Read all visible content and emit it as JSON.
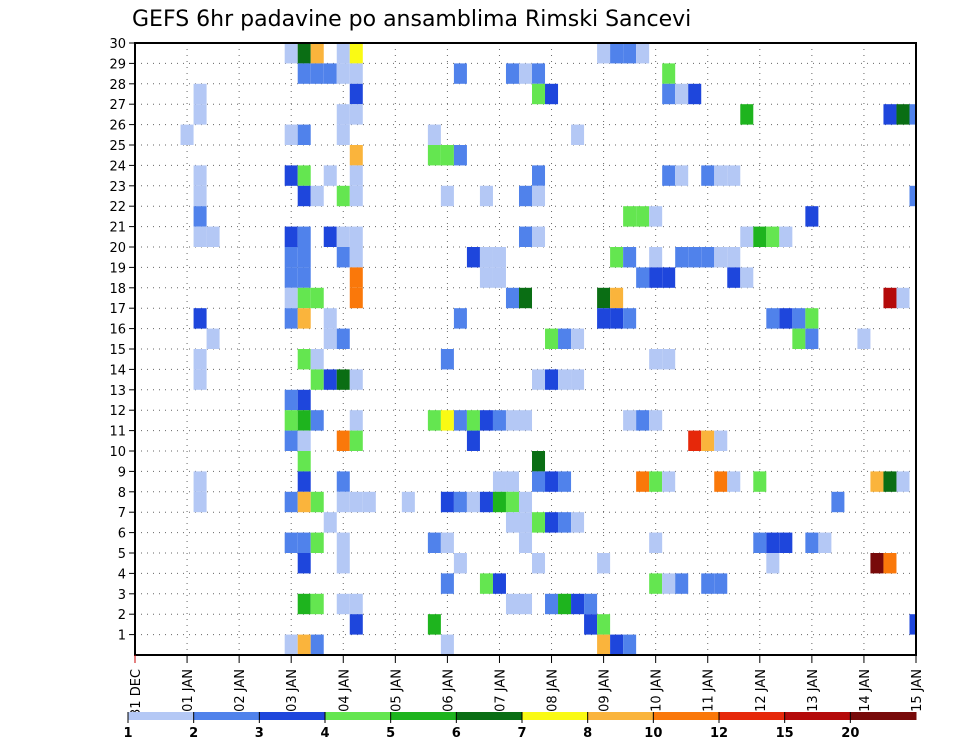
{
  "chart_data": {
    "type": "heatmap",
    "title": "GEFS 6hr padavine po ansamblima Rimski Sancevi",
    "xlabel": "",
    "ylabel": "",
    "x_tick_labels": [
      "31 DEC",
      "01 JAN",
      "02 JAN",
      "03 JAN",
      "04 JAN",
      "05 JAN",
      "06 JAN",
      "07 JAN",
      "08 JAN",
      "09 JAN",
      "10 JAN",
      "11 JAN",
      "12 JAN",
      "13 JAN",
      "14 JAN",
      "15 JAN"
    ],
    "y_tick_labels": [
      "1",
      "2",
      "3",
      "4",
      "5",
      "6",
      "7",
      "8",
      "9",
      "10",
      "11",
      "12",
      "13",
      "14",
      "15",
      "16",
      "17",
      "18",
      "19",
      "20",
      "21",
      "22",
      "23",
      "24",
      "25",
      "26",
      "27",
      "28",
      "29",
      "30"
    ],
    "x_unit": "6-hour steps from 31 DEC 00Z",
    "xlim": [
      0,
      60
    ],
    "ylim": [
      0,
      30
    ],
    "grid": "dotted",
    "colorbar": {
      "position": "bottom",
      "labels": [
        "1",
        "2",
        "3",
        "4",
        "5",
        "6",
        "7",
        "8",
        "10",
        "12",
        "15",
        "20"
      ],
      "colors": [
        "#b4c8f5",
        "#5082eb",
        "#1e46dc",
        "#64e650",
        "#1eb41e",
        "#0a6e14",
        "#fafa14",
        "#fab43c",
        "#fa780a",
        "#e6280a",
        "#b40a0a",
        "#780a0a"
      ]
    },
    "cells": [
      [
        30,
        12,
        0
      ],
      [
        30,
        13,
        5
      ],
      [
        30,
        14,
        7
      ],
      [
        30,
        16,
        0
      ],
      [
        30,
        17,
        6
      ],
      [
        30,
        36,
        0
      ],
      [
        30,
        37,
        1
      ],
      [
        30,
        38,
        1
      ],
      [
        30,
        39,
        0
      ],
      [
        29,
        13,
        1
      ],
      [
        29,
        14,
        1
      ],
      [
        29,
        15,
        1
      ],
      [
        29,
        16,
        0
      ],
      [
        29,
        17,
        0
      ],
      [
        29,
        25,
        1
      ],
      [
        29,
        29,
        1
      ],
      [
        29,
        30,
        0
      ],
      [
        29,
        31,
        1
      ],
      [
        29,
        41,
        3
      ],
      [
        28,
        5,
        0
      ],
      [
        28,
        17,
        2
      ],
      [
        28,
        31,
        3
      ],
      [
        28,
        32,
        2
      ],
      [
        28,
        41,
        1
      ],
      [
        28,
        42,
        0
      ],
      [
        28,
        43,
        2
      ],
      [
        27,
        5,
        0
      ],
      [
        27,
        16,
        0
      ],
      [
        27,
        17,
        0
      ],
      [
        27,
        47,
        4
      ],
      [
        27,
        58,
        2
      ],
      [
        27,
        59,
        5
      ],
      [
        27,
        60,
        1
      ],
      [
        26,
        4,
        0
      ],
      [
        26,
        12,
        0
      ],
      [
        26,
        13,
        1
      ],
      [
        26,
        16,
        0
      ],
      [
        26,
        23,
        0
      ],
      [
        26,
        34,
        0
      ],
      [
        25,
        17,
        7
      ],
      [
        25,
        23,
        3
      ],
      [
        25,
        24,
        3
      ],
      [
        25,
        25,
        1
      ],
      [
        24,
        5,
        0
      ],
      [
        24,
        12,
        2
      ],
      [
        24,
        13,
        3
      ],
      [
        24,
        15,
        0
      ],
      [
        24,
        17,
        0
      ],
      [
        24,
        31,
        1
      ],
      [
        24,
        41,
        1
      ],
      [
        24,
        42,
        0
      ],
      [
        24,
        44,
        1
      ],
      [
        24,
        45,
        0
      ],
      [
        24,
        46,
        0
      ],
      [
        23,
        5,
        0
      ],
      [
        23,
        13,
        2
      ],
      [
        23,
        14,
        0
      ],
      [
        23,
        16,
        3
      ],
      [
        23,
        17,
        0
      ],
      [
        23,
        24,
        0
      ],
      [
        23,
        27,
        0
      ],
      [
        23,
        30,
        1
      ],
      [
        23,
        31,
        0
      ],
      [
        23,
        60,
        1
      ],
      [
        22,
        5,
        1
      ],
      [
        22,
        38,
        3
      ],
      [
        22,
        39,
        3
      ],
      [
        22,
        40,
        0
      ],
      [
        22,
        52,
        2
      ],
      [
        21,
        5,
        0
      ],
      [
        21,
        6,
        0
      ],
      [
        21,
        12,
        2
      ],
      [
        21,
        13,
        1
      ],
      [
        21,
        15,
        2
      ],
      [
        21,
        16,
        0
      ],
      [
        21,
        17,
        0
      ],
      [
        21,
        30,
        1
      ],
      [
        21,
        31,
        0
      ],
      [
        21,
        47,
        0
      ],
      [
        21,
        48,
        4
      ],
      [
        21,
        49,
        3
      ],
      [
        21,
        50,
        0
      ],
      [
        20,
        12,
        1
      ],
      [
        20,
        13,
        1
      ],
      [
        20,
        16,
        1
      ],
      [
        20,
        17,
        0
      ],
      [
        20,
        26,
        2
      ],
      [
        20,
        27,
        0
      ],
      [
        20,
        28,
        0
      ],
      [
        20,
        37,
        3
      ],
      [
        20,
        38,
        1
      ],
      [
        20,
        40,
        0
      ],
      [
        20,
        42,
        1
      ],
      [
        20,
        43,
        1
      ],
      [
        20,
        44,
        1
      ],
      [
        20,
        45,
        0
      ],
      [
        20,
        46,
        0
      ],
      [
        19,
        12,
        1
      ],
      [
        19,
        13,
        1
      ],
      [
        19,
        17,
        8
      ],
      [
        19,
        27,
        0
      ],
      [
        19,
        28,
        0
      ],
      [
        19,
        39,
        1
      ],
      [
        19,
        40,
        2
      ],
      [
        19,
        41,
        2
      ],
      [
        19,
        46,
        2
      ],
      [
        19,
        47,
        0
      ],
      [
        18,
        12,
        0
      ],
      [
        18,
        13,
        3
      ],
      [
        18,
        14,
        3
      ],
      [
        18,
        17,
        8
      ],
      [
        18,
        29,
        1
      ],
      [
        18,
        30,
        5
      ],
      [
        18,
        36,
        5
      ],
      [
        18,
        37,
        7
      ],
      [
        18,
        58,
        10
      ],
      [
        18,
        59,
        0
      ],
      [
        17,
        5,
        2
      ],
      [
        17,
        12,
        1
      ],
      [
        17,
        13,
        7
      ],
      [
        17,
        15,
        0
      ],
      [
        17,
        25,
        1
      ],
      [
        17,
        36,
        2
      ],
      [
        17,
        37,
        2
      ],
      [
        17,
        38,
        1
      ],
      [
        17,
        49,
        1
      ],
      [
        17,
        50,
        2
      ],
      [
        17,
        51,
        1
      ],
      [
        17,
        52,
        3
      ],
      [
        16,
        6,
        0
      ],
      [
        16,
        15,
        0
      ],
      [
        16,
        16,
        1
      ],
      [
        16,
        32,
        3
      ],
      [
        16,
        33,
        1
      ],
      [
        16,
        34,
        0
      ],
      [
        16,
        51,
        3
      ],
      [
        16,
        52,
        1
      ],
      [
        16,
        56,
        0
      ],
      [
        15,
        5,
        0
      ],
      [
        15,
        13,
        3
      ],
      [
        15,
        14,
        0
      ],
      [
        15,
        24,
        1
      ],
      [
        15,
        40,
        0
      ],
      [
        15,
        41,
        0
      ],
      [
        14,
        5,
        0
      ],
      [
        14,
        14,
        3
      ],
      [
        14,
        15,
        2
      ],
      [
        14,
        16,
        5
      ],
      [
        14,
        17,
        0
      ],
      [
        14,
        31,
        0
      ],
      [
        14,
        32,
        2
      ],
      [
        14,
        33,
        0
      ],
      [
        14,
        34,
        0
      ],
      [
        13,
        12,
        1
      ],
      [
        13,
        13,
        2
      ],
      [
        12,
        12,
        3
      ],
      [
        12,
        13,
        4
      ],
      [
        12,
        14,
        1
      ],
      [
        12,
        17,
        0
      ],
      [
        12,
        23,
        3
      ],
      [
        12,
        24,
        6
      ],
      [
        12,
        25,
        1
      ],
      [
        12,
        26,
        3
      ],
      [
        12,
        27,
        2
      ],
      [
        12,
        28,
        1
      ],
      [
        12,
        29,
        0
      ],
      [
        12,
        30,
        0
      ],
      [
        12,
        38,
        0
      ],
      [
        12,
        39,
        1
      ],
      [
        12,
        40,
        0
      ],
      [
        11,
        12,
        1
      ],
      [
        11,
        13,
        0
      ],
      [
        11,
        16,
        8
      ],
      [
        11,
        17,
        3
      ],
      [
        11,
        26,
        2
      ],
      [
        11,
        43,
        9
      ],
      [
        11,
        44,
        7
      ],
      [
        11,
        45,
        0
      ],
      [
        10,
        13,
        3
      ],
      [
        10,
        31,
        5
      ],
      [
        9,
        5,
        0
      ],
      [
        9,
        13,
        2
      ],
      [
        9,
        16,
        1
      ],
      [
        9,
        28,
        0
      ],
      [
        9,
        29,
        0
      ],
      [
        9,
        31,
        1
      ],
      [
        9,
        32,
        2
      ],
      [
        9,
        33,
        1
      ],
      [
        9,
        39,
        8
      ],
      [
        9,
        40,
        3
      ],
      [
        9,
        41,
        0
      ],
      [
        9,
        45,
        8
      ],
      [
        9,
        46,
        0
      ],
      [
        9,
        48,
        3
      ],
      [
        9,
        57,
        7
      ],
      [
        9,
        58,
        5
      ],
      [
        9,
        59,
        0
      ],
      [
        8,
        5,
        0
      ],
      [
        8,
        12,
        1
      ],
      [
        8,
        13,
        7
      ],
      [
        8,
        14,
        3
      ],
      [
        8,
        16,
        0
      ],
      [
        8,
        17,
        0
      ],
      [
        8,
        18,
        0
      ],
      [
        8,
        21,
        0
      ],
      [
        8,
        24,
        2
      ],
      [
        8,
        25,
        1
      ],
      [
        8,
        26,
        0
      ],
      [
        8,
        27,
        2
      ],
      [
        8,
        28,
        4
      ],
      [
        8,
        29,
        3
      ],
      [
        8,
        30,
        0
      ],
      [
        8,
        54,
        1
      ],
      [
        7,
        15,
        0
      ],
      [
        7,
        29,
        0
      ],
      [
        7,
        30,
        0
      ],
      [
        7,
        31,
        3
      ],
      [
        7,
        32,
        2
      ],
      [
        7,
        33,
        1
      ],
      [
        7,
        34,
        0
      ],
      [
        6,
        12,
        1
      ],
      [
        6,
        13,
        1
      ],
      [
        6,
        14,
        3
      ],
      [
        6,
        16,
        0
      ],
      [
        6,
        23,
        1
      ],
      [
        6,
        24,
        0
      ],
      [
        6,
        30,
        0
      ],
      [
        6,
        40,
        0
      ],
      [
        6,
        48,
        1
      ],
      [
        6,
        49,
        2
      ],
      [
        6,
        50,
        2
      ],
      [
        6,
        52,
        1
      ],
      [
        6,
        53,
        0
      ],
      [
        5,
        13,
        2
      ],
      [
        5,
        16,
        0
      ],
      [
        5,
        25,
        0
      ],
      [
        5,
        31,
        0
      ],
      [
        5,
        36,
        0
      ],
      [
        5,
        49,
        0
      ],
      [
        5,
        57,
        11
      ],
      [
        5,
        58,
        8
      ],
      [
        4,
        24,
        1
      ],
      [
        4,
        27,
        3
      ],
      [
        4,
        28,
        2
      ],
      [
        4,
        40,
        3
      ],
      [
        4,
        41,
        0
      ],
      [
        4,
        42,
        1
      ],
      [
        4,
        44,
        1
      ],
      [
        4,
        45,
        1
      ],
      [
        3,
        13,
        4
      ],
      [
        3,
        14,
        3
      ],
      [
        3,
        16,
        0
      ],
      [
        3,
        17,
        0
      ],
      [
        3,
        29,
        0
      ],
      [
        3,
        30,
        0
      ],
      [
        3,
        32,
        1
      ],
      [
        3,
        33,
        4
      ],
      [
        3,
        34,
        2
      ],
      [
        3,
        35,
        1
      ],
      [
        2,
        17,
        2
      ],
      [
        2,
        23,
        4
      ],
      [
        2,
        35,
        2
      ],
      [
        2,
        36,
        3
      ],
      [
        2,
        60,
        2
      ],
      [
        1,
        12,
        0
      ],
      [
        1,
        13,
        7
      ],
      [
        1,
        14,
        1
      ],
      [
        1,
        24,
        0
      ],
      [
        1,
        36,
        7
      ],
      [
        1,
        37,
        2
      ],
      [
        1,
        38,
        1
      ]
    ]
  }
}
